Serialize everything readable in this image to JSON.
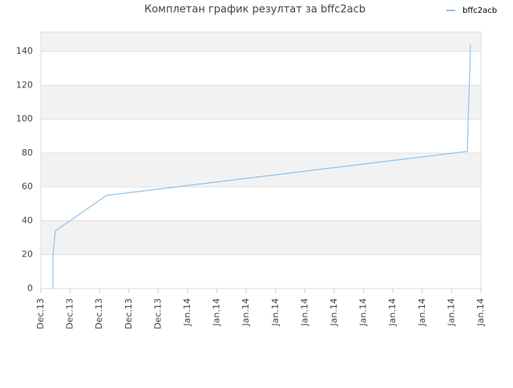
{
  "chart_data": {
    "type": "line",
    "title": "Комплетан график резултат за bffc2acb",
    "x": [
      0.41,
      0.41,
      0.49,
      2.24,
      14.54,
      14.56,
      14.62,
      14.64
    ],
    "series": [
      {
        "name": "bffc2acb",
        "color": "#90c3ec",
        "values": [
          0,
          19,
          34,
          55,
          81,
          97,
          128,
          144
        ]
      }
    ],
    "xlim": [
      0,
      15
    ],
    "xticks": [
      {
        "value": 0,
        "label": "Dec.13"
      },
      {
        "value": 1,
        "label": "Dec.13"
      },
      {
        "value": 2,
        "label": "Dec.13"
      },
      {
        "value": 3,
        "label": "Dec.13"
      },
      {
        "value": 4,
        "label": "Dec.13"
      },
      {
        "value": 5,
        "label": "Jan.14"
      },
      {
        "value": 6,
        "label": "Jan.14"
      },
      {
        "value": 7,
        "label": "Jan.14"
      },
      {
        "value": 8,
        "label": "Jan.14"
      },
      {
        "value": 9,
        "label": "Jan.14"
      },
      {
        "value": 10,
        "label": "Jan.14"
      },
      {
        "value": 11,
        "label": "Jan.14"
      },
      {
        "value": 12,
        "label": "Jan.14"
      },
      {
        "value": 13,
        "label": "Jan.14"
      },
      {
        "value": 14,
        "label": "Jan.14"
      },
      {
        "value": 15,
        "label": "Jan.14"
      }
    ],
    "ylim": [
      0,
      151.4
    ],
    "yticks": [
      0,
      20,
      40,
      60,
      80,
      100,
      120,
      140
    ],
    "grid": true,
    "legend": "top-right"
  }
}
